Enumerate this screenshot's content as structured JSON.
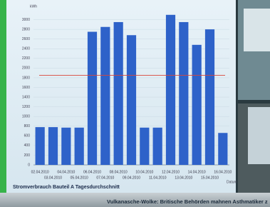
{
  "chart_data": {
    "type": "bar",
    "title": "Stromverbrauch Bauteil A Tagesdurchschnitt",
    "y_label": "kWh",
    "x_label": "Datum",
    "categories": [
      "02.04.2010",
      "03.04.2010",
      "04.04.2010",
      "05.04.2010",
      "06.04.2010",
      "07.04.2010",
      "08.04.2010",
      "09.04.2010",
      "10.04.2010",
      "11.04.2010",
      "12.04.2010",
      "13.04.2010",
      "14.04.2010",
      "15.04.2010",
      "16.04.2010"
    ],
    "values": [
      780,
      780,
      770,
      770,
      2750,
      2850,
      2950,
      2680,
      770,
      770,
      3100,
      2950,
      2480,
      2800,
      660
    ],
    "color": "#2e62c9",
    "reference_line": 1850,
    "reference_color": "#d9443a",
    "ylim": [
      0,
      3200
    ],
    "yticks": [
      0,
      200,
      400,
      600,
      800,
      1000,
      1200,
      1400,
      1600,
      1800,
      2000,
      2200,
      2400,
      2600,
      2800,
      3000
    ],
    "grid": true
  },
  "ticker": "Vulkanasche-Wolke: Britische Behörden mahnen Asthmatiker z"
}
